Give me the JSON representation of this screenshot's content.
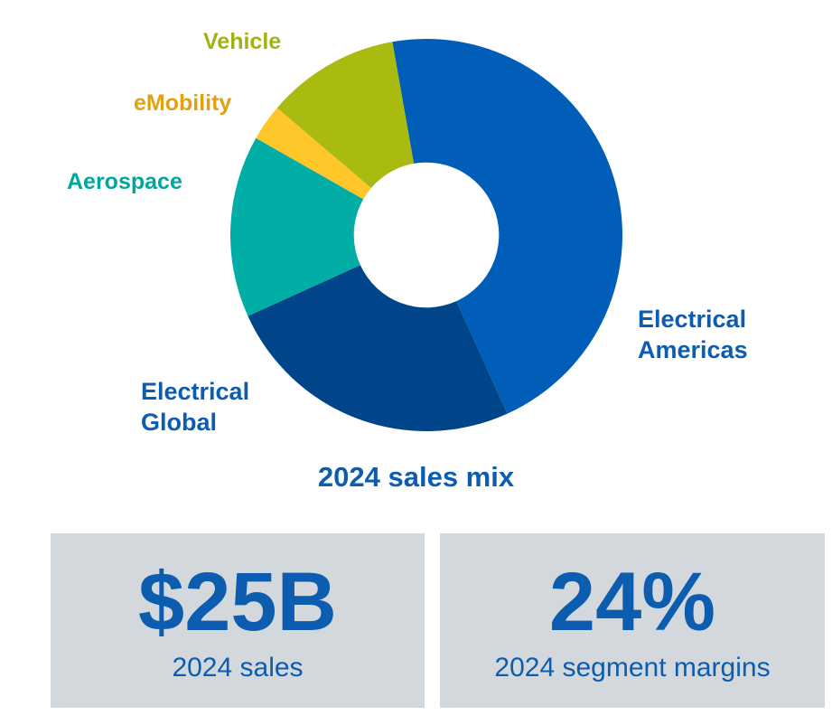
{
  "chart_data": {
    "type": "pie",
    "variant": "donut",
    "title": "2024 sales mix",
    "title_color": "#0c5cb0",
    "start_angle_deg": -10,
    "direction": "clockwise",
    "inner_radius_ratio": 0.37,
    "legend_position": "labels-around-chart",
    "values_are": "estimated percent of sales",
    "segments": [
      {
        "label": "Electrical Americas",
        "value": 46,
        "color": "#005eb8",
        "label_color": "#0c5cb0"
      },
      {
        "label": "Electrical Global",
        "value": 25,
        "color": "#004589",
        "label_color": "#0c5cb0"
      },
      {
        "label": "Aerospace",
        "value": 15,
        "color": "#00aea5",
        "label_color": "#00a79e"
      },
      {
        "label": "eMobility",
        "value": 3,
        "color": "#ffc629",
        "label_color": "#e2a013"
      },
      {
        "label": "Vehicle",
        "value": 11,
        "color": "#a9ba10",
        "label_color": "#a2b212"
      }
    ]
  },
  "stats": [
    {
      "value": "$25B",
      "caption": "2024 sales"
    },
    {
      "value": "24%",
      "caption": "2024 segment margins"
    }
  ],
  "colors": {
    "text_blue": "#0c5cb0",
    "stat_box_background": "#d3d8dc",
    "page_background": "#ffffff"
  }
}
